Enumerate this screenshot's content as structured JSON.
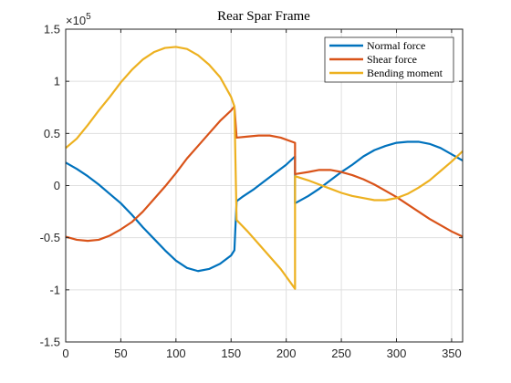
{
  "chart_data": {
    "type": "line",
    "title": "Rear Spar Frame",
    "xlabel": "",
    "ylabel": "",
    "xlim": [
      0,
      360
    ],
    "ylim": [
      -150000,
      150000
    ],
    "grid": true,
    "legend_position": "top-right",
    "y_exponent_label": "×10",
    "y_exponent_power": "5",
    "x_ticks": [
      0,
      50,
      100,
      150,
      200,
      250,
      300,
      350
    ],
    "x_tick_labels": [
      "0",
      "50",
      "100",
      "150",
      "200",
      "250",
      "300",
      "350"
    ],
    "y_ticks": [
      -150000,
      -100000,
      -50000,
      0,
      50000,
      100000,
      150000
    ],
    "y_tick_labels": [
      "-1.5",
      "-1",
      "-0.5",
      "0",
      "0.5",
      "1",
      "1.5"
    ],
    "series": [
      {
        "name": "Normal force",
        "color": "#0072BD",
        "points": [
          [
            0,
            22000
          ],
          [
            10,
            16000
          ],
          [
            20,
            9000
          ],
          [
            30,
            1000
          ],
          [
            40,
            -8000
          ],
          [
            50,
            -17000
          ],
          [
            60,
            -28000
          ],
          [
            70,
            -40000
          ],
          [
            80,
            -51000
          ],
          [
            90,
            -62000
          ],
          [
            100,
            -72000
          ],
          [
            110,
            -79000
          ],
          [
            120,
            -82000
          ],
          [
            130,
            -80000
          ],
          [
            140,
            -75000
          ],
          [
            150,
            -67000
          ],
          [
            153,
            -62000
          ],
          [
            153,
            -62000
          ],
          [
            155,
            -15000
          ],
          [
            160,
            -11000
          ],
          [
            170,
            -4000
          ],
          [
            180,
            4000
          ],
          [
            190,
            12000
          ],
          [
            200,
            20000
          ],
          [
            208,
            28000
          ],
          [
            208,
            -17000
          ],
          [
            220,
            -10000
          ],
          [
            230,
            -3000
          ],
          [
            240,
            5000
          ],
          [
            250,
            13000
          ],
          [
            260,
            20000
          ],
          [
            270,
            28000
          ],
          [
            280,
            34000
          ],
          [
            290,
            38000
          ],
          [
            300,
            41000
          ],
          [
            310,
            42000
          ],
          [
            320,
            42000
          ],
          [
            330,
            40000
          ],
          [
            340,
            36000
          ],
          [
            350,
            30000
          ],
          [
            360,
            24000
          ]
        ]
      },
      {
        "name": "Shear force",
        "color": "#D95319",
        "points": [
          [
            0,
            -49000
          ],
          [
            10,
            -52000
          ],
          [
            20,
            -53000
          ],
          [
            30,
            -52000
          ],
          [
            40,
            -48000
          ],
          [
            50,
            -42000
          ],
          [
            60,
            -35000
          ],
          [
            70,
            -25000
          ],
          [
            80,
            -13000
          ],
          [
            90,
            -1000
          ],
          [
            100,
            12000
          ],
          [
            110,
            26000
          ],
          [
            120,
            38000
          ],
          [
            130,
            50000
          ],
          [
            140,
            62000
          ],
          [
            150,
            72000
          ],
          [
            153,
            76000
          ],
          [
            153,
            76000
          ],
          [
            155,
            46000
          ],
          [
            165,
            47000
          ],
          [
            175,
            48000
          ],
          [
            185,
            48000
          ],
          [
            195,
            46000
          ],
          [
            208,
            41000
          ],
          [
            208,
            11000
          ],
          [
            220,
            13000
          ],
          [
            230,
            15000
          ],
          [
            240,
            15000
          ],
          [
            250,
            13000
          ],
          [
            260,
            10000
          ],
          [
            270,
            6000
          ],
          [
            280,
            1000
          ],
          [
            290,
            -5000
          ],
          [
            300,
            -11000
          ],
          [
            310,
            -18000
          ],
          [
            320,
            -25000
          ],
          [
            330,
            -32000
          ],
          [
            340,
            -38000
          ],
          [
            350,
            -44000
          ],
          [
            360,
            -49000
          ]
        ]
      },
      {
        "name": "Bending moment",
        "color": "#EDB120",
        "points": [
          [
            0,
            36000
          ],
          [
            10,
            45000
          ],
          [
            20,
            58000
          ],
          [
            30,
            72000
          ],
          [
            40,
            85000
          ],
          [
            50,
            99000
          ],
          [
            60,
            111000
          ],
          [
            70,
            121000
          ],
          [
            80,
            128000
          ],
          [
            90,
            132000
          ],
          [
            100,
            133000
          ],
          [
            110,
            131000
          ],
          [
            120,
            125000
          ],
          [
            130,
            116000
          ],
          [
            140,
            104000
          ],
          [
            150,
            85000
          ],
          [
            153,
            76000
          ],
          [
            153,
            76000
          ],
          [
            155,
            -33000
          ],
          [
            165,
            -44000
          ],
          [
            175,
            -56000
          ],
          [
            185,
            -68000
          ],
          [
            195,
            -80000
          ],
          [
            208,
            -99000
          ],
          [
            208,
            9000
          ],
          [
            220,
            5000
          ],
          [
            230,
            1000
          ],
          [
            240,
            -3000
          ],
          [
            250,
            -7000
          ],
          [
            260,
            -10000
          ],
          [
            270,
            -12000
          ],
          [
            280,
            -14000
          ],
          [
            290,
            -14000
          ],
          [
            300,
            -12000
          ],
          [
            310,
            -8000
          ],
          [
            320,
            -2000
          ],
          [
            330,
            5000
          ],
          [
            340,
            14000
          ],
          [
            350,
            23000
          ],
          [
            360,
            33000
          ]
        ]
      }
    ]
  }
}
